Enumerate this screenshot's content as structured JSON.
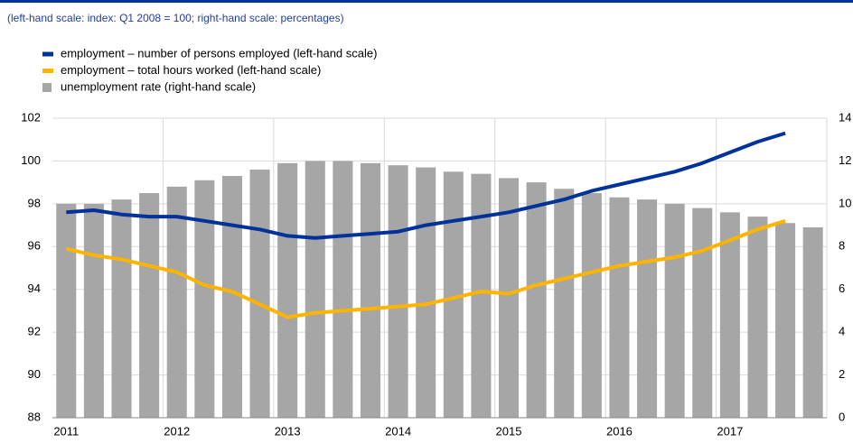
{
  "chart_data": {
    "type": "bar_line",
    "subtitle": "(left-hand scale: index: Q1 2008 = 100; right-hand scale: percentages)",
    "categories": [
      "2011",
      null,
      null,
      null,
      "2012",
      null,
      null,
      null,
      "2013",
      null,
      null,
      null,
      "2014",
      null,
      null,
      null,
      "2015",
      null,
      null,
      null,
      "2016",
      null,
      null,
      null,
      "2017",
      null,
      null,
      null
    ],
    "series": [
      {
        "name": "employment – number of persons employed (left-hand scale)",
        "color": "#003299",
        "kind": "line",
        "axis": "y",
        "values": [
          97.6,
          97.7,
          97.5,
          97.4,
          97.4,
          97.2,
          97.0,
          96.8,
          96.5,
          96.4,
          96.5,
          96.6,
          96.7,
          97.0,
          97.2,
          97.4,
          97.6,
          97.9,
          98.2,
          98.6,
          98.9,
          99.2,
          99.5,
          99.9,
          100.4,
          100.9,
          101.3,
          null
        ]
      },
      {
        "name": "employment – total hours worked (left-hand scale)",
        "color": "#ffb400",
        "kind": "line",
        "axis": "y",
        "values": [
          95.9,
          95.6,
          95.4,
          95.1,
          94.8,
          94.2,
          93.9,
          93.3,
          92.7,
          92.9,
          93.0,
          93.1,
          93.2,
          93.3,
          93.6,
          93.9,
          93.8,
          94.2,
          94.5,
          94.8,
          95.1,
          95.3,
          95.5,
          95.8,
          96.3,
          96.8,
          97.2,
          null
        ]
      },
      {
        "name": "unemployment rate (right-hand scale)",
        "color": "#a6a6a6",
        "kind": "bar",
        "axis": "y2",
        "values": [
          10.0,
          10.0,
          10.2,
          10.5,
          10.8,
          11.1,
          11.3,
          11.6,
          11.9,
          12.0,
          12.0,
          11.9,
          11.8,
          11.7,
          11.5,
          11.4,
          11.2,
          11.0,
          10.7,
          10.5,
          10.3,
          10.2,
          10.0,
          9.8,
          9.6,
          9.4,
          9.1,
          8.9
        ]
      }
    ],
    "ylim": [
      88,
      102
    ],
    "yticks": [
      88,
      90,
      92,
      94,
      96,
      98,
      100,
      102
    ],
    "y2lim": [
      0,
      14
    ],
    "y2ticks": [
      0,
      2,
      4,
      6,
      8,
      10,
      12,
      14
    ],
    "grid": true
  }
}
